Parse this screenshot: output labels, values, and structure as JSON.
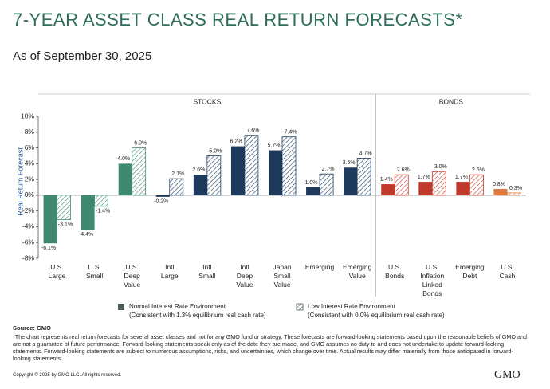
{
  "chart_data": {
    "type": "bar",
    "title": "7-YEAR ASSET CLASS REAL RETURN FORECASTS*",
    "subtitle": "As of September 30, 2025",
    "y_label": "Real Return Forecast",
    "groups": [
      {
        "label": "STOCKS",
        "count": 9
      },
      {
        "label": "BONDS",
        "count": 4
      }
    ],
    "categories": [
      "U.S.\nLarge",
      "U.S.\nSmall",
      "U.S.\nDeep\nValue",
      "Intl\nLarge",
      "Intl\nSmall",
      "Intl\nDeep\nValue",
      "Japan\nSmall\nValue",
      "Emerging",
      "Emerging\nValue",
      "U.S.\nBonds",
      "U.S.\nInflation\nLinked\nBonds",
      "Emerging\nDebt",
      "U.S.\nCash"
    ],
    "category_colors": [
      "#3f8a6f",
      "#3f8a6f",
      "#3f8a6f",
      "#1d3a5c",
      "#1d3a5c",
      "#1d3a5c",
      "#1d3a5c",
      "#1d3a5c",
      "#1d3a5c",
      "#c0392b",
      "#c0392b",
      "#c0392b",
      "#e07b3c"
    ],
    "series": [
      {
        "name": "Normal Interest Rate Environment",
        "note": "(Consistent with 1.3% equilibrium real cash rate)",
        "color": "#4d5b5b",
        "pattern": "solid",
        "values": [
          -6.1,
          -4.4,
          4.0,
          -0.2,
          2.6,
          6.2,
          5.7,
          1.0,
          3.5,
          1.4,
          1.7,
          1.7,
          0.8
        ],
        "value_labels": [
          "-6.1%",
          "-4.4%",
          "4.0%",
          "-0.2%",
          "2.6%",
          "6.2%",
          "5.7%",
          "1.0%",
          "3.5%",
          "1.4%",
          "1.7%",
          "1.7%",
          "0.8%"
        ]
      },
      {
        "name": "Low Interest Rate Environment",
        "note": "(Consistent with 0.0% equilibrium real cash rate)",
        "color": "#4d5b5b",
        "pattern": "hatch",
        "values": [
          -3.1,
          -1.4,
          6.0,
          2.1,
          5.0,
          7.6,
          7.4,
          2.7,
          4.7,
          2.6,
          3.0,
          2.6,
          0.3
        ],
        "value_labels": [
          "-3.1%",
          "-1.4%",
          "6.0%",
          "2.1%",
          "5.0%",
          "7.6%",
          "7.4%",
          "2.7%",
          "4.7%",
          "2.6%",
          "3.0%",
          "2.6%",
          "0.3%"
        ]
      }
    ],
    "ylim": [
      -8,
      10
    ],
    "yticks": [
      {
        "value": -8,
        "label": "-8%"
      },
      {
        "value": -6,
        "label": "-6%"
      },
      {
        "value": -4,
        "label": "-4%"
      },
      {
        "value": -2,
        "label": "-2%"
      },
      {
        "value": 0,
        "label": "0%"
      },
      {
        "value": 2,
        "label": "2%"
      },
      {
        "value": 4,
        "label": "4%"
      },
      {
        "value": 6,
        "label": "6%"
      },
      {
        "value": 8,
        "label": "8%"
      },
      {
        "value": 10,
        "label": "10%"
      }
    ],
    "grid": false,
    "source": "Source: GMO",
    "footnote": "*The chart represents real return forecasts for several asset classes and not for any GMO fund or strategy. These forecasts are forward-looking statements based upon the reasonable beliefs of GMO and are not a guarantee of future performance. Forward-looking statements speak only as of the date they are made, and GMO assumes no duty to and does not undertake to update forward-looking statements. Forward-looking statements are subject to numerous assumptions, risks, and uncertainties, which change over time.  Actual results may differ materially from those anticipated in forward-looking statements.",
    "copyright": "Copyright © 2025 by GMO LLC. All rights reserved.",
    "logo": "GMO"
  }
}
